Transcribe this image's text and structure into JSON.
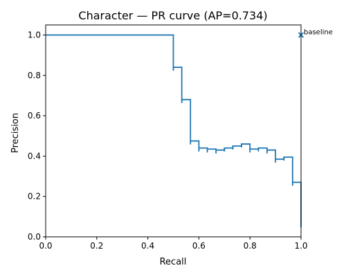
{
  "chart_data": {
    "type": "line",
    "title": "Character — PR curve (AP=0.734)",
    "xlabel": "Recall",
    "ylabel": "Precision",
    "xlim": [
      0.0,
      1.0
    ],
    "ylim": [
      0.0,
      1.05
    ],
    "xticks": [
      "0.0",
      "0.2",
      "0.4",
      "0.6",
      "0.8",
      "1.0"
    ],
    "yticks": [
      "0.0",
      "0.2",
      "0.4",
      "0.6",
      "0.8",
      "1.0"
    ],
    "grid": false,
    "line_color": "#1f77b4",
    "series": [
      {
        "step": "post",
        "points": [
          [
            0.0,
            1.0
          ],
          [
            0.5,
            1.0
          ],
          [
            0.5,
            0.84
          ],
          [
            0.533,
            0.84
          ],
          [
            0.533,
            0.68
          ],
          [
            0.567,
            0.68
          ],
          [
            0.567,
            0.475
          ],
          [
            0.6,
            0.475
          ],
          [
            0.6,
            0.44
          ],
          [
            0.633,
            0.44
          ],
          [
            0.633,
            0.435
          ],
          [
            0.667,
            0.435
          ],
          [
            0.667,
            0.43
          ],
          [
            0.7,
            0.43
          ],
          [
            0.7,
            0.44
          ],
          [
            0.733,
            0.44
          ],
          [
            0.733,
            0.45
          ],
          [
            0.767,
            0.45
          ],
          [
            0.767,
            0.46
          ],
          [
            0.8,
            0.46
          ],
          [
            0.8,
            0.435
          ],
          [
            0.833,
            0.435
          ],
          [
            0.833,
            0.44
          ],
          [
            0.867,
            0.44
          ],
          [
            0.867,
            0.43
          ],
          [
            0.9,
            0.43
          ],
          [
            0.9,
            0.385
          ],
          [
            0.933,
            0.385
          ],
          [
            0.933,
            0.395
          ],
          [
            0.967,
            0.395
          ],
          [
            0.967,
            0.27
          ],
          [
            1.0,
            0.27
          ],
          [
            1.0,
            0.065
          ]
        ]
      }
    ],
    "marker": {
      "x": 1.0,
      "y": 1.0,
      "symbol": "x",
      "label": "baseline"
    }
  }
}
